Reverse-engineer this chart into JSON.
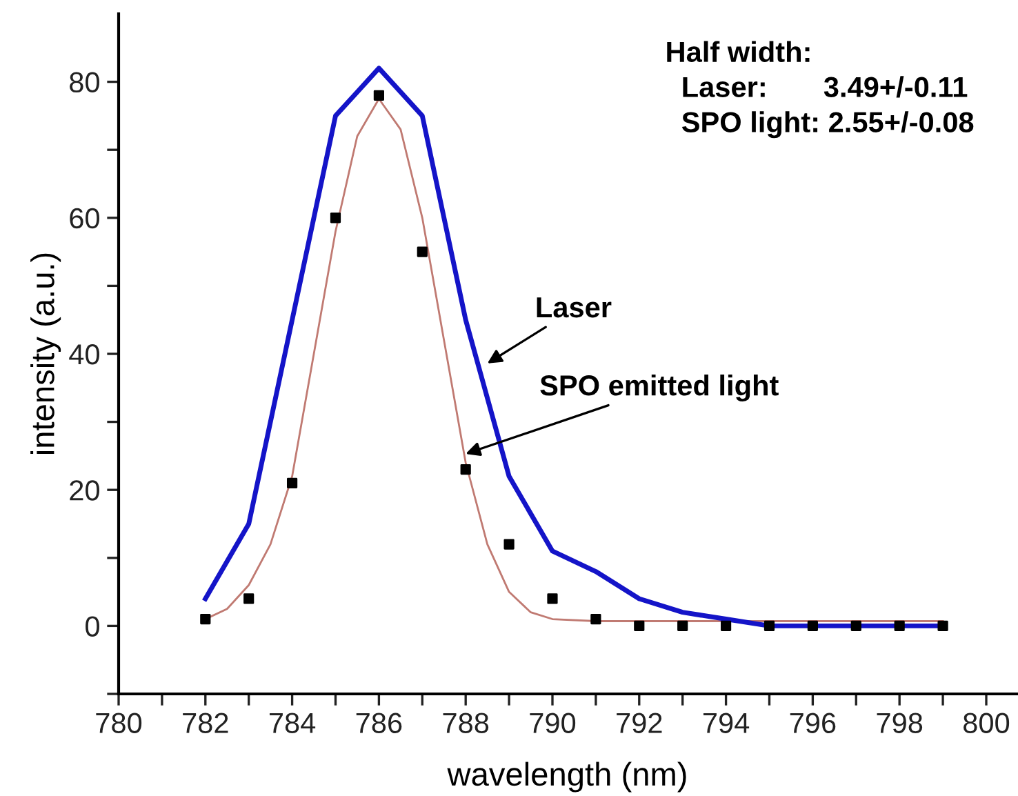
{
  "chart_data": {
    "type": "line",
    "xlabel": "wavelength (nm)",
    "ylabel": "intensity (a.u.)",
    "x": [
      782,
      783,
      784,
      785,
      786,
      787,
      788,
      789,
      790,
      791,
      792,
      793,
      794,
      795,
      796,
      797,
      798,
      799
    ],
    "series": [
      {
        "color": "#1414c8",
        "values": [
          4,
          15,
          45,
          75,
          82,
          75,
          45,
          22,
          11,
          8,
          4,
          2,
          1,
          0,
          0,
          0,
          0,
          0
        ]
      },
      {
        "type": "line",
        "color": "#c07a72",
        "x": [
          782,
          782.5,
          783,
          783.5,
          784,
          784.5,
          785,
          785.5,
          786,
          786.5,
          787,
          787.5,
          788,
          788.5,
          789,
          789.5,
          790,
          791,
          795,
          799
        ],
        "values": [
          1,
          2.5,
          6,
          12,
          22,
          40,
          58,
          72,
          77.5,
          73,
          60,
          42,
          24,
          12,
          5,
          2,
          1,
          0.7,
          0.7,
          0.7
        ]
      },
      {
        "type": "scatter",
        "color": "#000000",
        "marker": "square",
        "values": [
          1,
          4,
          21,
          60,
          78,
          55,
          23,
          12,
          4,
          1,
          0,
          0,
          0,
          0,
          0,
          0,
          0,
          0
        ]
      }
    ],
    "xlim": [
      780,
      800.7
    ],
    "ylim": [
      -10,
      90
    ],
    "xticks": [
      780,
      {
        "value": 781,
        "label": null
      },
      782,
      {
        "value": 783,
        "label": null
      },
      784,
      {
        "value": 785,
        "label": null
      },
      786,
      {
        "value": 787,
        "label": null
      },
      788,
      {
        "value": 789,
        "label": null
      },
      790,
      {
        "value": 791,
        "label": null
      },
      792,
      {
        "value": 793,
        "label": null
      },
      794,
      {
        "value": 795,
        "label": null
      },
      796,
      {
        "value": 797,
        "label": null
      },
      798,
      {
        "value": 799,
        "label": null
      },
      800
    ],
    "yticks": [
      {
        "value": -10,
        "label": null
      },
      0,
      {
        "value": 10,
        "label": null
      },
      20,
      {
        "value": 30,
        "label": null
      },
      40,
      {
        "value": 50,
        "label": null
      },
      60,
      {
        "value": 70,
        "label": null
      },
      80
    ],
    "annotations": [
      {
        "text": "Laser",
        "x": 788.5,
        "y": 38.6
      },
      {
        "text": "SPO emitted light",
        "x": 788,
        "y": 25.3
      },
      "Half width:\n  Laser:       3.49+/-0.11\n  SPO light: 2.55+/-0.08"
    ],
    "grid": false,
    "legend": false
  }
}
